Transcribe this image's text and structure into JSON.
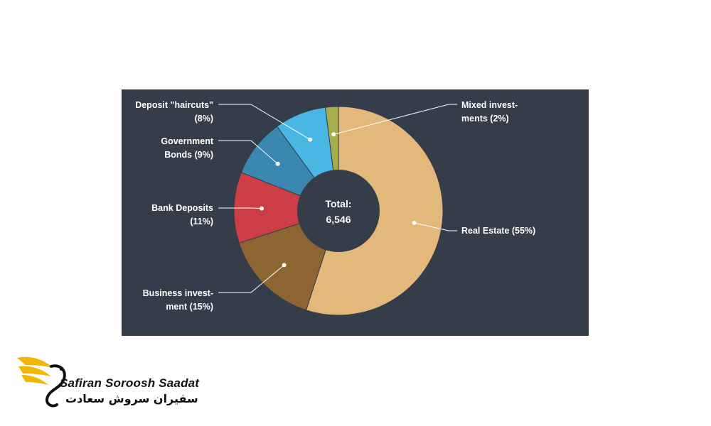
{
  "chart_data": {
    "type": "pie",
    "total_label": "Total:",
    "total_value": "6,546",
    "slices": [
      {
        "name": "Real Estate",
        "percent": 55,
        "label_lines": [
          "Real Estate (55%)"
        ],
        "color": "#e2b97a"
      },
      {
        "name": "Business investment",
        "percent": 15,
        "label_lines": [
          "Business invest-",
          "ment (15%)"
        ],
        "color": "#8c6532"
      },
      {
        "name": "Bank Deposits",
        "percent": 11,
        "label_lines": [
          "Bank Deposits",
          "(11%)"
        ],
        "color": "#cd3d45"
      },
      {
        "name": "Government Bonds",
        "percent": 9,
        "label_lines": [
          "Government",
          "Bonds (9%)"
        ],
        "color": "#3a87b0"
      },
      {
        "name": "Deposit \"haircuts\"",
        "percent": 8,
        "label_lines": [
          "Deposit \"haircuts\"",
          "(8%)"
        ],
        "color": "#48b7e4"
      },
      {
        "name": "Mixed investments",
        "percent": 2,
        "label_lines": [
          "Mixed invest-",
          "ments (2%)"
        ],
        "color": "#a6ad4d"
      }
    ]
  },
  "brand": {
    "name_latin": "Safiran Soroosh Saadat",
    "name_persian": "سفیران سروش سعادت",
    "accent_color": "#f2b705"
  }
}
